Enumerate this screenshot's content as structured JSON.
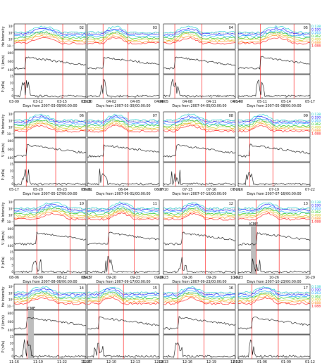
{
  "figure": {
    "energy_legend": [
      "0.138",
      "0.190",
      "0.263",
      "0.362",
      "0.499",
      "0.688",
      "1.088"
    ],
    "legend_colors": [
      "#00c8c8",
      "#0000ff",
      "#00a0ff",
      "#00c000",
      "#c8c800",
      "#ff8000",
      "#ff0000"
    ],
    "row_labels": [
      "He Intensity",
      "V (km/s)",
      "P (nPa)"
    ],
    "row_label_y_ticks": {
      "he": [
        "10²",
        "10¹",
        "10⁰",
        "10⁻¹"
      ],
      "v": [
        "800",
        "600",
        "400"
      ],
      "p": [
        "15",
        "10",
        "5",
        "0"
      ]
    },
    "annotation_icme": "ICME"
  },
  "chart_data": [
    {
      "type": "line",
      "label": "02",
      "xticks": [
        "03-09",
        "03-12",
        "03-15",
        "03-18"
      ],
      "xlabel": "Days from 2007-03-09/00:00:00"
    },
    {
      "type": "line",
      "label": "03",
      "xticks": [
        "03-30",
        "04-02",
        "04-05",
        "04-08"
      ],
      "xlabel": "Days from 2007-03-30/00:00:00"
    },
    {
      "type": "line",
      "label": "04",
      "xticks": [
        "04-05",
        "04-08",
        "04-11",
        "04-14"
      ],
      "xlabel": "Days from 2007-04-05/00:00:00"
    },
    {
      "type": "line",
      "label": "05",
      "xticks": [
        "05-08",
        "05-11",
        "05-14",
        "05-17"
      ],
      "xlabel": "Days from 2007-05-08/00:00:00"
    },
    {
      "type": "line",
      "label": "06",
      "xticks": [
        "05-17",
        "05-20",
        "05-23",
        "05-26"
      ],
      "xlabel": "Days from 2007-05-17/00:00:00"
    },
    {
      "type": "line",
      "label": "07",
      "xticks": [
        "06-01",
        "06-04",
        "06-07"
      ],
      "xlabel": "Days from 2007-06-01/00:00:00"
    },
    {
      "type": "line",
      "label": "08",
      "xticks": [
        "07-10",
        "07-13",
        "07-16",
        "07-19"
      ],
      "xlabel": "Days from 2007-07-10/00:00:00"
    },
    {
      "type": "line",
      "label": "09",
      "xticks": [
        "07-16",
        "07-19",
        "07-22"
      ],
      "xlabel": "Days from 2007-07-16/00:00:00"
    },
    {
      "type": "line",
      "label": "10",
      "xticks": [
        "08-06",
        "08-09",
        "08-12",
        "08-15"
      ],
      "xlabel": "Days from 2007-08-06/00:00:00"
    },
    {
      "type": "line",
      "label": "11",
      "xticks": [
        "09-17",
        "09-20",
        "09-23",
        "09-26"
      ],
      "xlabel": "Days from 2007-09-17/00:00:00"
    },
    {
      "type": "line",
      "label": "12",
      "xticks": [
        "09-23",
        "09-26",
        "09-29",
        "10-02"
      ],
      "xlabel": "Days from 2007-09-23/00:00:00"
    },
    {
      "type": "line",
      "label": "13",
      "xticks": [
        "10-23",
        "10-26",
        "10-29"
      ],
      "xlabel": "Days from 2007-10-23/00:00:00"
    },
    {
      "type": "line",
      "label": "14",
      "xticks": [
        "11-16",
        "11-19",
        "11-22",
        "11-25"
      ],
      "xlabel": "Days from 2007-11-16/00:00:00"
    },
    {
      "type": "line",
      "label": "15",
      "xticks": [
        "12-07",
        "12-10",
        "12-13",
        "12-16"
      ],
      "xlabel": "Days from 2007-12-07/00:00:00"
    },
    {
      "type": "line",
      "label": "16",
      "xticks": [
        "12-13",
        "12-16",
        "12-19",
        "12-22"
      ],
      "xlabel": "Days from 2007-12-13/00:00:00"
    },
    {
      "type": "line",
      "label": "17",
      "xticks": [
        "01-03",
        "01-06",
        "01-09",
        "01-12"
      ],
      "xlabel": "Days from 2008-01-03/00:00:00"
    }
  ],
  "icme_panels": [
    11,
    12
  ]
}
